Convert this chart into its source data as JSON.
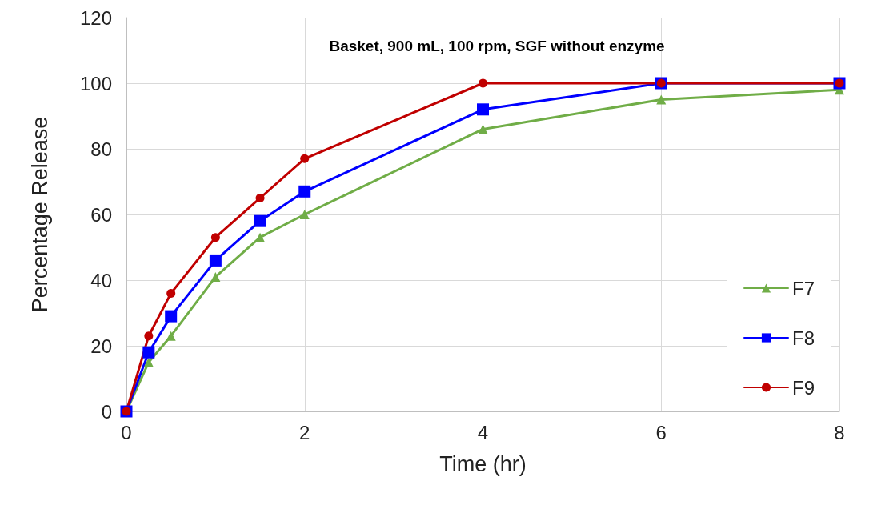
{
  "chart_data": {
    "type": "line",
    "title": "Basket, 900 mL, 100 rpm, SGF without enzyme",
    "xlabel": "Time (hr)",
    "ylabel": "Percentage Release",
    "x": [
      0,
      0.25,
      0.5,
      1,
      1.5,
      2,
      4,
      6,
      8
    ],
    "series": [
      {
        "name": "F7",
        "color": "#70ad47",
        "marker": "triangle",
        "values": [
          0,
          15,
          23,
          41,
          53,
          60,
          86,
          95,
          98
        ]
      },
      {
        "name": "F8",
        "color": "#0000ff",
        "marker": "square",
        "values": [
          0,
          18,
          29,
          46,
          58,
          67,
          92,
          100,
          100
        ]
      },
      {
        "name": "F9",
        "color": "#c00000",
        "marker": "circle",
        "values": [
          0,
          23,
          36,
          53,
          65,
          77,
          100,
          100,
          100
        ]
      }
    ],
    "xlim": [
      0,
      8
    ],
    "xticks": [
      0,
      2,
      4,
      6,
      8
    ],
    "ylim": [
      0,
      120
    ],
    "yticks": [
      0,
      20,
      40,
      60,
      80,
      100,
      120
    ],
    "grid": true,
    "legend": "right",
    "line_style": "solid"
  }
}
